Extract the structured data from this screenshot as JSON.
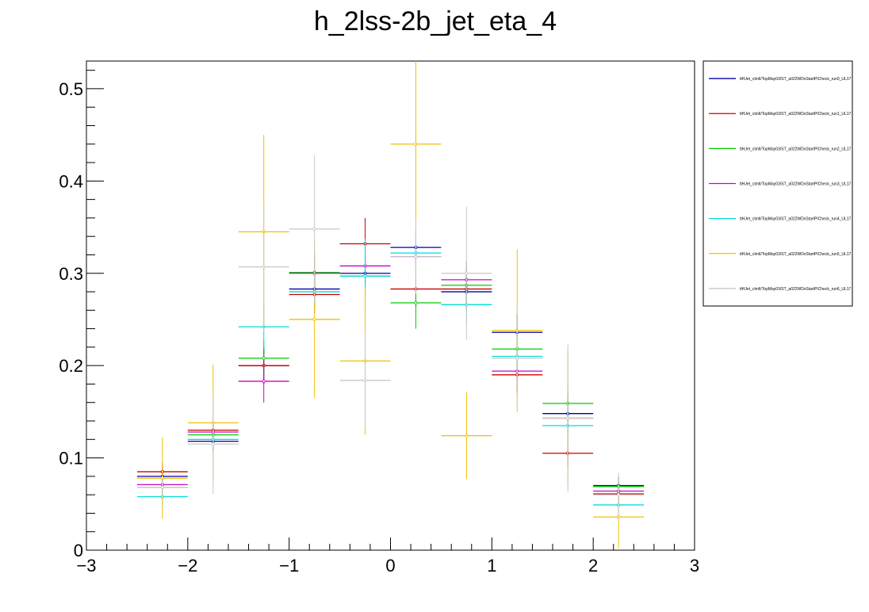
{
  "chart_data": {
    "type": "scatter",
    "title": "h_2lss-2b_jet_eta_4",
    "xlabel": "",
    "ylabel": "",
    "xlim": [
      -3,
      3
    ],
    "ylim": [
      0,
      0.53
    ],
    "x_ticks": [
      -3,
      -2,
      -1,
      0,
      1,
      2,
      3
    ],
    "x_tick_labels": [
      "−3",
      "−2",
      "−1",
      "0",
      "1",
      "2",
      "3"
    ],
    "y_ticks": [
      0,
      0.1,
      0.2,
      0.3,
      0.4,
      0.5
    ],
    "y_tick_labels": [
      "0",
      "0.1",
      "0.2",
      "0.3",
      "0.4",
      "0.5"
    ],
    "bin_edges": [
      -2.5,
      -2.0,
      -1.5,
      -1.0,
      -0.5,
      0.0,
      0.5,
      1.0,
      1.5,
      2.0,
      2.5
    ],
    "legend_position": "top-right",
    "series": [
      {
        "name": "ttHJet_ctmlI/TopMay03/ST_a022WDxStartPICheck_run0_UL17",
        "color": "#0000aa",
        "values": [
          0.08,
          0.118,
          0.2,
          0.283,
          0.3,
          0.328,
          0.28,
          0.236,
          0.148,
          0.07
        ],
        "errors": [
          0.01,
          0.01,
          0.02,
          0.02,
          0.02,
          0.02,
          0.02,
          0.02,
          0.02,
          0.01
        ]
      },
      {
        "name": "ttHJet_ctmlI/TopMay03/ST_a022WDxStartPICheck_run1_UL17",
        "color": "#cc0000",
        "values": [
          0.085,
          0.13,
          0.2,
          0.277,
          0.332,
          0.283,
          0.283,
          0.19,
          0.105,
          0.061
        ],
        "errors": [
          0.01,
          0.01,
          0.02,
          0.02,
          0.028,
          0.02,
          0.02,
          0.02,
          0.015,
          0.01
        ]
      },
      {
        "name": "ttHJet_ctmlI/TopMay03/ST_a022WDxStartPICheck_run2_UL17",
        "color": "#00cc00",
        "values": [
          0.068,
          0.125,
          0.208,
          0.301,
          0.297,
          0.268,
          0.287,
          0.218,
          0.159,
          0.069
        ],
        "errors": [
          0.01,
          0.01,
          0.02,
          0.02,
          0.02,
          0.028,
          0.02,
          0.02,
          0.02,
          0.01
        ]
      },
      {
        "name": "ttHJet_ctmlI/TopMay03/ST_a022WDxStartPICheck_run3_UL17",
        "color": "#cc00cc",
        "values": [
          0.071,
          0.128,
          0.183,
          0.3,
          0.308,
          0.318,
          0.293,
          0.194,
          0.143,
          0.064
        ],
        "errors": [
          0.01,
          0.01,
          0.023,
          0.02,
          0.02,
          0.02,
          0.02,
          0.02,
          0.02,
          0.01
        ]
      },
      {
        "name": "ttHJet_ctmlI/TopMay03/ST_a022WDxStartPICheck_run4_UL17",
        "color": "#00dddd",
        "values": [
          0.058,
          0.12,
          0.242,
          0.28,
          0.297,
          0.322,
          0.266,
          0.21,
          0.135,
          0.049
        ],
        "errors": [
          0.01,
          0.01,
          0.025,
          0.02,
          0.04,
          0.02,
          0.02,
          0.02,
          0.02,
          0.01
        ]
      },
      {
        "name": "ttHJet_ctmlI/TopMay03/ST_a022WDxStartPICheck_run5_UL17",
        "color": "#f0c000",
        "values": [
          0.078,
          0.138,
          0.345,
          0.25,
          0.205,
          0.44,
          0.124,
          0.238,
          0.143,
          0.036
        ],
        "errors": [
          0.044,
          0.063,
          0.105,
          0.085,
          0.08,
          0.09,
          0.047,
          0.088,
          0.073,
          0.034
        ]
      },
      {
        "name": "ttHJet_ctmlI/TopMay03/ST_a022WDxStartPICheck_run6_UL17",
        "color": "#c8c8c8",
        "values": [
          0.068,
          0.115,
          0.307,
          0.348,
          0.184,
          0.318,
          0.3,
          0.208,
          0.143,
          0.06
        ],
        "errors": [
          0.01,
          0.054,
          0.07,
          0.08,
          0.052,
          0.04,
          0.072,
          0.058,
          0.08,
          0.024
        ]
      }
    ]
  }
}
